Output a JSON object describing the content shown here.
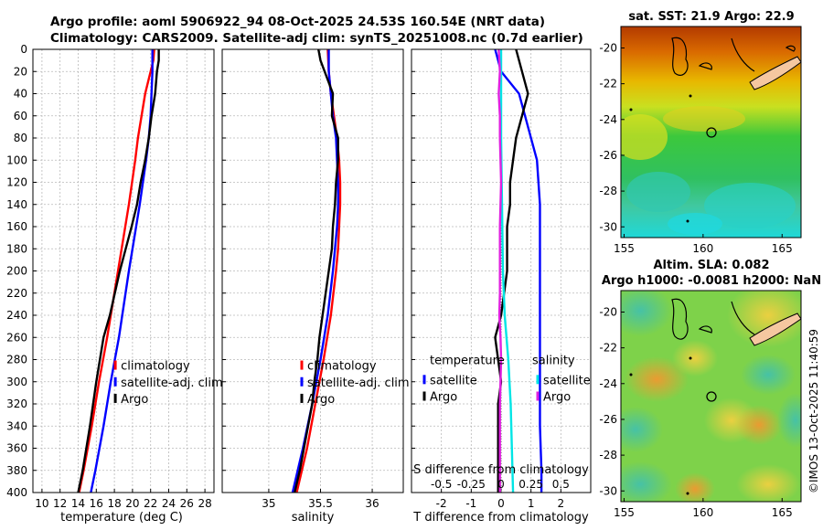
{
  "titles": {
    "line1": "Argo profile: aoml 5906922_94 08-Oct-2025 24.53S 160.54E (NRT data)",
    "line2": "Climatology: CARS2009. Satellite-adj clim: synTS_20251008.nc (0.7d earlier)",
    "map1_title": "sat. SST: 21.9 Argo: 22.9",
    "map2_title1": "Altim. SLA: 0.082",
    "map2_title2": "Argo h1000: -0.0081 h2000: NaN",
    "timestamp": "©IMOS 13-Oct-2025 11:40:59"
  },
  "colors": {
    "clim": "#ff0000",
    "sat": "#0000ff",
    "argo": "#000000",
    "cyan": "#00e5e5",
    "magenta": "#e020e0"
  },
  "chart_data": [
    {
      "type": "line",
      "xlabel": "temperature (deg C)",
      "ylabel": "",
      "xlim": [
        9,
        29
      ],
      "ylim": [
        400,
        0
      ],
      "xticks": [
        10,
        12,
        14,
        16,
        18,
        20,
        22,
        24,
        26,
        28
      ],
      "yticks": [
        0,
        20,
        40,
        60,
        80,
        100,
        120,
        140,
        160,
        180,
        200,
        220,
        240,
        260,
        280,
        300,
        320,
        340,
        360,
        380,
        400
      ],
      "legend": [
        "climatology",
        "satellite-adj. clim",
        "Argo"
      ],
      "series": [
        {
          "name": "climatology",
          "color_key": "clim",
          "depth": [
            0,
            10,
            20,
            40,
            60,
            80,
            100,
            140,
            200,
            260,
            300,
            340,
            380,
            400
          ],
          "values": [
            22.4,
            22.3,
            22.0,
            21.4,
            21.0,
            20.6,
            20.3,
            19.6,
            18.4,
            17.2,
            16.3,
            15.5,
            14.6,
            14.1
          ]
        },
        {
          "name": "satellite-adj. clim",
          "color_key": "sat",
          "depth": [
            0,
            10,
            20,
            40,
            60,
            80,
            100,
            140,
            200,
            260,
            300,
            340,
            380,
            400
          ],
          "values": [
            22.2,
            22.2,
            22.2,
            22.1,
            22.0,
            21.8,
            21.5,
            20.8,
            19.6,
            18.5,
            17.6,
            16.8,
            15.9,
            15.4
          ]
        },
        {
          "name": "Argo",
          "color_key": "argo",
          "depth": [
            0,
            10,
            20,
            40,
            60,
            80,
            100,
            120,
            140,
            160,
            200,
            240,
            260,
            300,
            340,
            380,
            400
          ],
          "values": [
            22.9,
            22.9,
            22.7,
            22.5,
            22.1,
            21.8,
            21.4,
            20.9,
            20.5,
            19.9,
            18.6,
            17.5,
            16.8,
            16.0,
            15.3,
            14.5,
            14.0
          ]
        }
      ]
    },
    {
      "type": "line",
      "xlabel": "salinity",
      "ylabel": "",
      "xlim": [
        34.55,
        36.3
      ],
      "ylim": [
        400,
        0
      ],
      "xticks": [
        35,
        35.5,
        36
      ],
      "legend": [
        "climatology",
        "satellite-adj. clim",
        "Argo"
      ],
      "series": [
        {
          "name": "climatology",
          "color_key": "clim",
          "depth": [
            0,
            20,
            40,
            60,
            80,
            100,
            120,
            140,
            160,
            180,
            200,
            240,
            280,
            320,
            360,
            400
          ],
          "values": [
            35.57,
            35.58,
            35.6,
            35.63,
            35.66,
            35.68,
            35.69,
            35.69,
            35.68,
            35.67,
            35.65,
            35.6,
            35.53,
            35.45,
            35.37,
            35.27
          ]
        },
        {
          "name": "satellite-adj. clim",
          "color_key": "sat",
          "depth": [
            0,
            20,
            40,
            60,
            80,
            100,
            120,
            140,
            160,
            180,
            200,
            240,
            280,
            320,
            360,
            400
          ],
          "values": [
            35.58,
            35.58,
            35.6,
            35.62,
            35.65,
            35.66,
            35.67,
            35.67,
            35.66,
            35.64,
            35.62,
            35.57,
            35.5,
            35.42,
            35.33,
            35.23
          ]
        },
        {
          "name": "Argo",
          "color_key": "argo",
          "depth": [
            0,
            10,
            20,
            40,
            60,
            80,
            100,
            120,
            140,
            160,
            180,
            200,
            220,
            240,
            260,
            280,
            300,
            320,
            340,
            360,
            380,
            400
          ],
          "values": [
            35.48,
            35.5,
            35.54,
            35.62,
            35.61,
            35.67,
            35.67,
            35.65,
            35.64,
            35.62,
            35.61,
            35.58,
            35.55,
            35.52,
            35.49,
            35.47,
            35.44,
            35.42,
            35.38,
            35.34,
            35.3,
            35.25
          ]
        }
      ]
    },
    {
      "type": "line",
      "xlabel": "T difference from climatology",
      "ylabel": "",
      "xlim": [
        -3,
        3
      ],
      "ylim": [
        400,
        0
      ],
      "xticks": [
        -2,
        -1,
        0,
        1,
        2
      ],
      "xticklabels": [
        "-2",
        "-1",
        "0",
        "1",
        "2"
      ],
      "top_axis_label": "S difference from climatology",
      "top_ticks": [
        -0.5,
        -0.25,
        0,
        0.25,
        0.5
      ],
      "top_tick_labels": [
        "-0.5",
        "-0.25",
        "0",
        "0.25",
        "0.5"
      ],
      "legend_headers": [
        "temperature",
        "salinity"
      ],
      "legend_temperature": [
        "satellite",
        "Argo"
      ],
      "legend_salinity": [
        "satellite",
        "Argo"
      ],
      "series": [
        {
          "name": "T satellite",
          "color_key": "sat",
          "depth": [
            0,
            20,
            40,
            60,
            80,
            100,
            140,
            200,
            260,
            300,
            340,
            380,
            400
          ],
          "values": [
            -0.2,
            0,
            0.6,
            0.8,
            1.0,
            1.2,
            1.3,
            1.3,
            1.3,
            1.3,
            1.3,
            1.35,
            1.35
          ]
        },
        {
          "name": "T Argo",
          "color_key": "argo",
          "depth": [
            0,
            20,
            40,
            60,
            80,
            100,
            120,
            140,
            160,
            180,
            200,
            220,
            240,
            260,
            280,
            300,
            320,
            340,
            360,
            380,
            400
          ],
          "values": [
            0.5,
            0.7,
            0.9,
            0.7,
            0.5,
            0.4,
            0.3,
            0.3,
            0.2,
            0.2,
            0.2,
            0.1,
            0,
            -0.2,
            -0.1,
            0,
            -0.1,
            -0.1,
            -0.1,
            -0.1,
            -0.1
          ]
        },
        {
          "name": "S satellite",
          "color_key": "cyan",
          "depth": [
            0,
            40,
            80,
            120,
            160,
            200,
            240,
            280,
            320,
            360,
            400
          ],
          "values": [
            0,
            0,
            0,
            0.005,
            0.01,
            0.015,
            0.03,
            0.06,
            0.08,
            0.09,
            0.1
          ]
        },
        {
          "name": "S Argo",
          "color_key": "magenta",
          "depth": [
            0,
            20,
            40,
            60,
            80,
            100,
            120,
            140,
            160,
            180,
            200,
            220,
            240,
            260,
            280,
            300,
            320,
            340,
            360,
            380,
            400
          ],
          "values": [
            -0.02,
            -0.01,
            -0.02,
            -0.01,
            -0.01,
            -0.005,
            0,
            -0.005,
            -0.01,
            -0.01,
            -0.01,
            -0.01,
            -0.015,
            -0.005,
            0,
            -0.005,
            -0.01,
            -0.01,
            -0.01,
            -0.01,
            -0.01
          ]
        }
      ]
    }
  ],
  "maps": {
    "xticks": [
      155,
      160,
      165
    ],
    "yticks": [
      -20,
      -22,
      -24,
      -26,
      -28,
      -30
    ],
    "xlim": [
      154.8,
      166.2
    ],
    "ylim": [
      -30.6,
      -18.8
    ],
    "argo_lon": 160.54,
    "argo_lat": -24.53
  }
}
